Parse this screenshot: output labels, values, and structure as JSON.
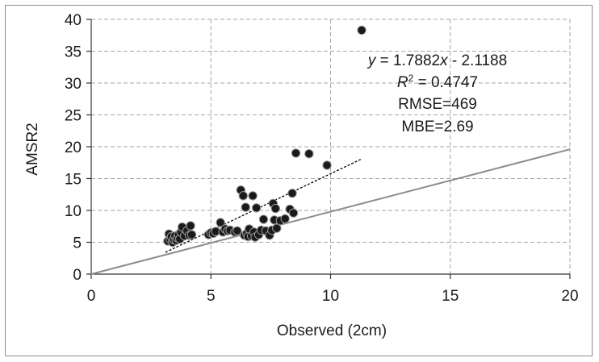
{
  "chart_data": {
    "type": "scatter",
    "title": "",
    "xlabel": "Observed (2cm)",
    "ylabel": "AMSR2",
    "xlim": [
      0,
      20
    ],
    "ylim": [
      0,
      40
    ],
    "x_ticks": [
      0,
      5,
      10,
      15,
      20
    ],
    "y_ticks": [
      0,
      5,
      10,
      15,
      20,
      25,
      30,
      35,
      40
    ],
    "grid": true,
    "colors": {
      "points": "#1a1a1a",
      "one_to_one": "#8c8c8c",
      "trend": "#000000",
      "grid": "#a6a6a6"
    },
    "one_to_one_line": {
      "x": [
        0,
        20
      ],
      "y": [
        0,
        19.6
      ]
    },
    "trend_line": {
      "slope": 1.7882,
      "intercept": -2.1188,
      "x_range": [
        3.1,
        11.3
      ]
    },
    "annotations": {
      "equation": {
        "y": "y",
        "eq": " = 1.7882",
        "x": "x",
        "rest": " - 2.1188"
      },
      "r2": {
        "r": "R",
        "sup": "2",
        "rest": " = 0.4747"
      },
      "rmse": "RMSE=469",
      "mbe": "MBE=2.69"
    },
    "points": [
      {
        "x": 3.2,
        "y": 5.2
      },
      {
        "x": 3.25,
        "y": 6.3
      },
      {
        "x": 3.3,
        "y": 5.5
      },
      {
        "x": 3.35,
        "y": 5.9
      },
      {
        "x": 3.4,
        "y": 5.0
      },
      {
        "x": 3.45,
        "y": 5.4
      },
      {
        "x": 3.5,
        "y": 6.0
      },
      {
        "x": 3.55,
        "y": 5.3
      },
      {
        "x": 3.6,
        "y": 5.7
      },
      {
        "x": 3.65,
        "y": 6.2
      },
      {
        "x": 3.7,
        "y": 5.5
      },
      {
        "x": 3.75,
        "y": 6.6
      },
      {
        "x": 3.8,
        "y": 7.4
      },
      {
        "x": 3.9,
        "y": 6.0
      },
      {
        "x": 4.0,
        "y": 6.8
      },
      {
        "x": 4.1,
        "y": 6.1
      },
      {
        "x": 4.15,
        "y": 7.6
      },
      {
        "x": 4.2,
        "y": 6.2
      },
      {
        "x": 4.9,
        "y": 6.2
      },
      {
        "x": 5.0,
        "y": 6.5
      },
      {
        "x": 5.1,
        "y": 6.4
      },
      {
        "x": 5.2,
        "y": 6.7
      },
      {
        "x": 5.4,
        "y": 8.1
      },
      {
        "x": 5.5,
        "y": 6.6
      },
      {
        "x": 5.6,
        "y": 7.1
      },
      {
        "x": 5.7,
        "y": 6.8
      },
      {
        "x": 5.8,
        "y": 6.9
      },
      {
        "x": 6.0,
        "y": 6.6
      },
      {
        "x": 6.1,
        "y": 6.8
      },
      {
        "x": 6.25,
        "y": 13.2
      },
      {
        "x": 6.35,
        "y": 12.3
      },
      {
        "x": 6.4,
        "y": 6.1
      },
      {
        "x": 6.45,
        "y": 10.5
      },
      {
        "x": 6.5,
        "y": 6.4
      },
      {
        "x": 6.55,
        "y": 5.9
      },
      {
        "x": 6.6,
        "y": 7.1
      },
      {
        "x": 6.7,
        "y": 6.0
      },
      {
        "x": 6.75,
        "y": 12.3
      },
      {
        "x": 6.8,
        "y": 6.6
      },
      {
        "x": 6.85,
        "y": 5.8
      },
      {
        "x": 6.9,
        "y": 10.4
      },
      {
        "x": 7.0,
        "y": 6.2
      },
      {
        "x": 7.1,
        "y": 6.9
      },
      {
        "x": 7.2,
        "y": 8.6
      },
      {
        "x": 7.3,
        "y": 6.8
      },
      {
        "x": 7.45,
        "y": 6.1
      },
      {
        "x": 7.55,
        "y": 6.9
      },
      {
        "x": 7.6,
        "y": 11.1
      },
      {
        "x": 7.65,
        "y": 8.5
      },
      {
        "x": 7.7,
        "y": 10.3
      },
      {
        "x": 7.75,
        "y": 7.2
      },
      {
        "x": 7.9,
        "y": 8.4
      },
      {
        "x": 8.1,
        "y": 8.7
      },
      {
        "x": 8.3,
        "y": 10.2
      },
      {
        "x": 8.4,
        "y": 12.7
      },
      {
        "x": 8.45,
        "y": 9.6
      },
      {
        "x": 8.55,
        "y": 19.0
      },
      {
        "x": 9.1,
        "y": 18.9
      },
      {
        "x": 9.85,
        "y": 17.1
      },
      {
        "x": 11.3,
        "y": 38.3
      }
    ]
  }
}
